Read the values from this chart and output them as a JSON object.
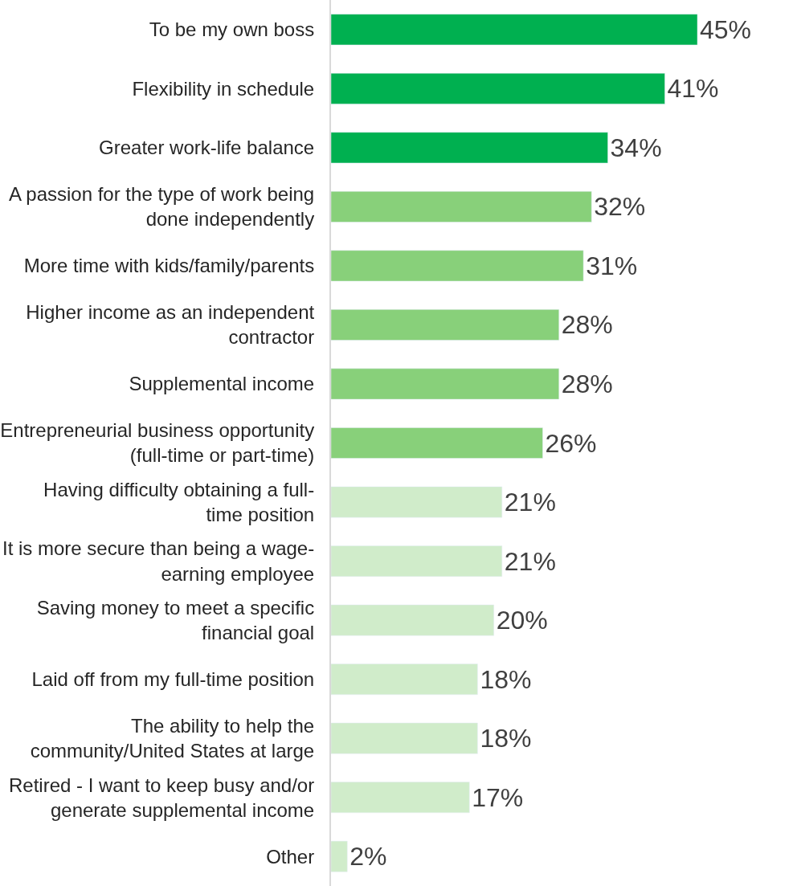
{
  "chart_data": {
    "type": "bar",
    "orientation": "horizontal",
    "categories": [
      "To be my own boss",
      "Flexibility in schedule",
      "Greater work-life balance",
      "A passion for the type of work being done independently",
      "More time with kids/family/parents",
      "Higher income as an independent contractor",
      "Supplemental income",
      "Entrepreneurial business opportunity (full-time or part-time)",
      "Having difficulty obtaining a full-time position",
      "It is more secure than being a wage-earning employee",
      "Saving money to meet a specific financial goal",
      "Laid off from my full-time position",
      "The ability to help the community/United States at large",
      "Retired - I want to keep busy and/or generate supplemental income",
      "Other"
    ],
    "values": [
      45,
      41,
      34,
      32,
      31,
      28,
      28,
      26,
      21,
      21,
      20,
      18,
      18,
      17,
      2
    ],
    "value_labels": [
      "45%",
      "41%",
      "34%",
      "32%",
      "31%",
      "28%",
      "28%",
      "26%",
      "21%",
      "21%",
      "20%",
      "18%",
      "18%",
      "17%",
      "2%"
    ],
    "colors": [
      "#00b050",
      "#00b050",
      "#00b050",
      "#88d07a",
      "#88d07a",
      "#88d07a",
      "#88d07a",
      "#88d07a",
      "#d0ecca",
      "#d0ecca",
      "#d0ecca",
      "#d0ecca",
      "#d0ecca",
      "#d0ecca",
      "#d0ecca"
    ],
    "tick_labels": "y"
  }
}
